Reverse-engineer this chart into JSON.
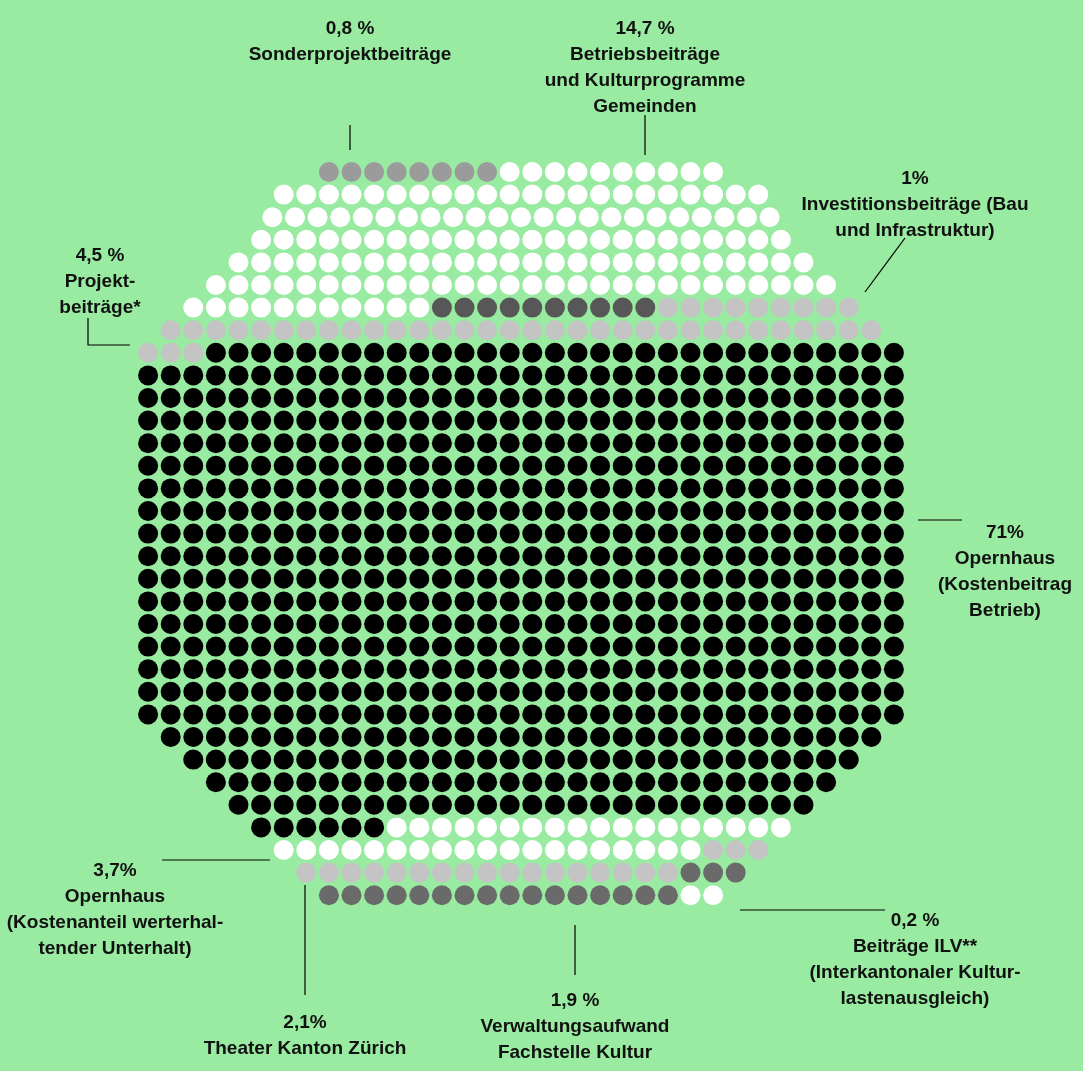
{
  "chart_data": {
    "type": "other",
    "categories": [
      "Sonderprojektbeiträge",
      "Betriebsbeiträge\nund Kulturprogramme\nGemeinden",
      "Investitionsbeiträge (Bau\nund Infrastruktur)",
      "Projekt-\nbeiträge*",
      "Opernhaus\n(Kostenbeitrag\nBetrieb)",
      "Opernhaus\n(Kostenanteil werterhal-\ntender Unterhalt)",
      "Theater Kanton Zürich",
      "Verwaltungsaufwand\nFachstelle Kultur",
      "Beiträge ILV**\n(Interkantonaler Kultur-\nlastenausgleich)"
    ],
    "values": [
      0.8,
      14.7,
      1,
      4.5,
      71,
      3.7,
      2.1,
      1.9,
      0.2
    ],
    "value_labels": [
      "0,8 %",
      "14,7 %",
      "1%",
      "4,5 %",
      "71%",
      "3,7%",
      "2,1%",
      "1,9 %",
      "0,2 %"
    ],
    "colors": [
      "#9b9b9b",
      "#ffffff",
      "#575757",
      "#c4c4c4",
      "#000000",
      "#ffffff",
      "#c4c4c4",
      "#6a6a6a",
      "#ffffff"
    ]
  }
}
